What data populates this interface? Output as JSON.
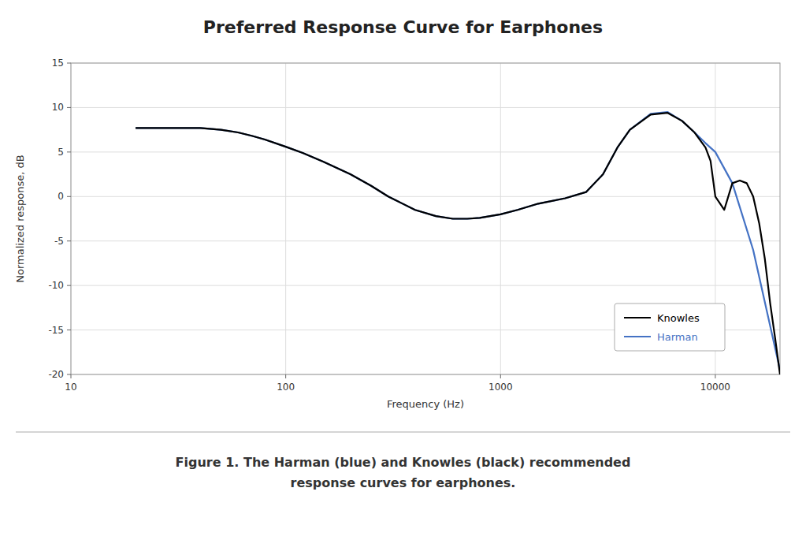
{
  "chart_data": {
    "type": "line",
    "title": "Preferred Response Curve for Earphones",
    "caption": "Figure 1.  The Harman (blue) and Knowles (black) recommended\nresponse curves for earphones.",
    "x_label": "Frequency (Hz)",
    "y_label": "Normalized response, dB",
    "log": "x",
    "grid": true,
    "legend": "lower right",
    "xlim": [
      10,
      20000
    ],
    "xticks": [
      10,
      100,
      1000,
      10000
    ],
    "ylim": [
      -20,
      15
    ],
    "yticks": [
      -20,
      -15,
      -10,
      -5,
      0,
      5,
      10,
      15
    ],
    "series": [
      {
        "name": "Harman",
        "color": "#4472C4",
        "x": [
          20,
          25,
          30,
          40,
          50,
          60,
          70,
          80,
          100,
          120,
          150,
          200,
          250,
          300,
          400,
          500,
          600,
          700,
          800,
          1000,
          1200,
          1500,
          2000,
          2500,
          3000,
          3500,
          4000,
          5000,
          6000,
          7000,
          8000,
          9000,
          10000,
          12000,
          15000,
          20000
        ],
        "values": [
          7.7,
          7.7,
          7.7,
          7.7,
          7.5,
          7.2,
          6.8,
          6.4,
          5.6,
          4.9,
          3.9,
          2.5,
          1.2,
          0.0,
          -1.5,
          -2.2,
          -2.5,
          -2.5,
          -2.4,
          -2.0,
          -1.5,
          -0.8,
          -0.2,
          0.5,
          2.5,
          5.5,
          7.5,
          9.3,
          9.5,
          8.5,
          7.2,
          6.0,
          5.0,
          1.5,
          -6.0,
          -19.5
        ]
      },
      {
        "name": "Knowles",
        "color": "#000000",
        "x": [
          20,
          25,
          30,
          40,
          50,
          60,
          70,
          80,
          100,
          120,
          150,
          200,
          250,
          300,
          400,
          500,
          600,
          700,
          800,
          1000,
          1200,
          1500,
          2000,
          2500,
          3000,
          3500,
          4000,
          5000,
          6000,
          7000,
          8000,
          9000,
          9500,
          10000,
          11000,
          12000,
          13000,
          14000,
          15000,
          16000,
          17000,
          18000,
          19000,
          20000
        ],
        "values": [
          7.7,
          7.7,
          7.7,
          7.7,
          7.5,
          7.2,
          6.8,
          6.4,
          5.6,
          4.9,
          3.9,
          2.5,
          1.2,
          0.0,
          -1.5,
          -2.2,
          -2.5,
          -2.5,
          -2.4,
          -2.0,
          -1.5,
          -0.8,
          -0.2,
          0.5,
          2.5,
          5.5,
          7.5,
          9.2,
          9.4,
          8.5,
          7.2,
          5.5,
          4.0,
          0.0,
          -1.5,
          1.5,
          1.8,
          1.5,
          0.0,
          -3.0,
          -7.0,
          -12.0,
          -16.0,
          -20.0
        ]
      }
    ]
  }
}
